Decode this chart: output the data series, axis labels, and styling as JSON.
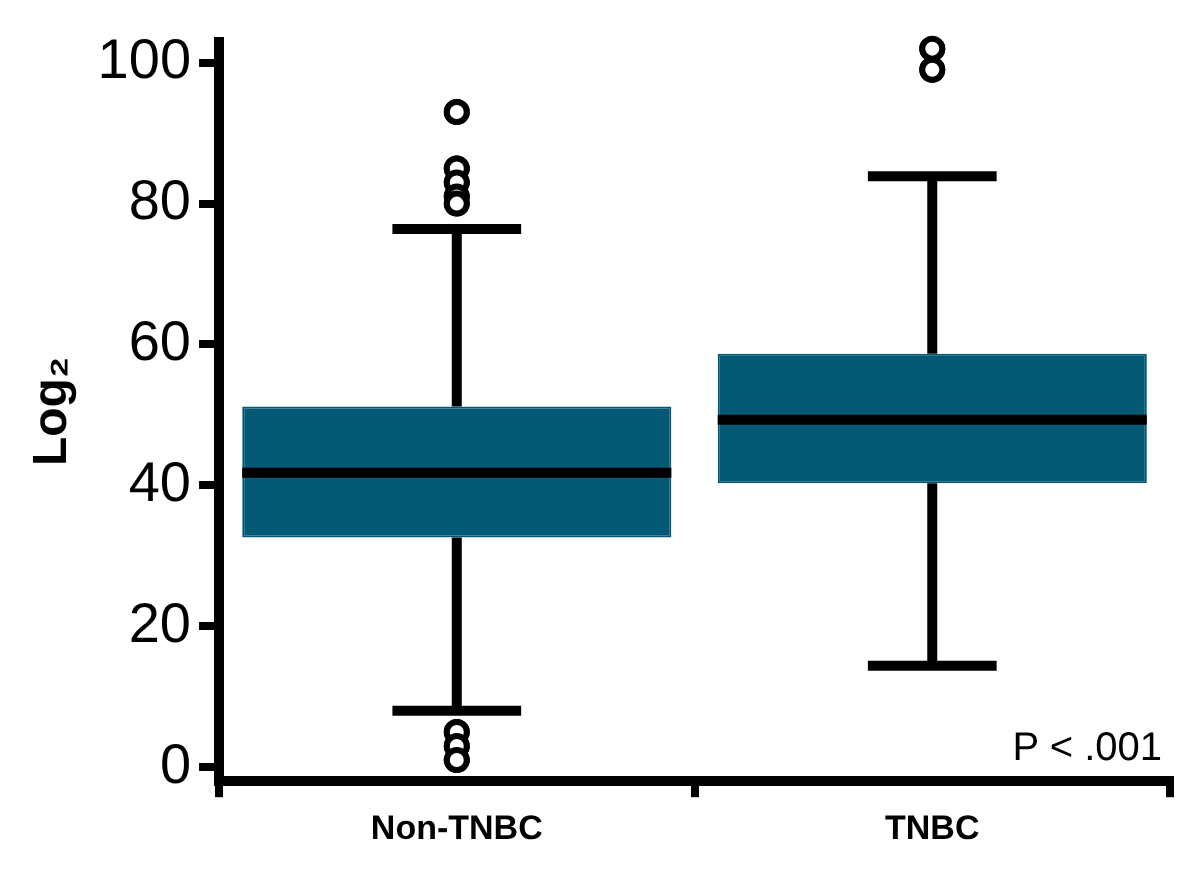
{
  "chart_data": {
    "type": "box",
    "ylabel": "Log₂",
    "categories": [
      "Non-TNBC",
      "TNBC"
    ],
    "color": "#045a74",
    "boxes": [
      {
        "low": 8,
        "q1": 32.6,
        "median": 41.8,
        "q3": 51.2,
        "high": 76.4,
        "outliers": [
          93,
          85,
          83,
          81,
          80,
          5,
          3,
          1
        ]
      },
      {
        "low": 14.4,
        "q1": 40.3,
        "median": 49.3,
        "q3": 58.7,
        "high": 83.9,
        "outliers": [
          102,
          99
        ]
      }
    ],
    "ylim": [
      -2,
      103
    ],
    "yticks": [
      0,
      20,
      40,
      60,
      80,
      100
    ],
    "annotations": [
      "P < .001"
    ]
  }
}
